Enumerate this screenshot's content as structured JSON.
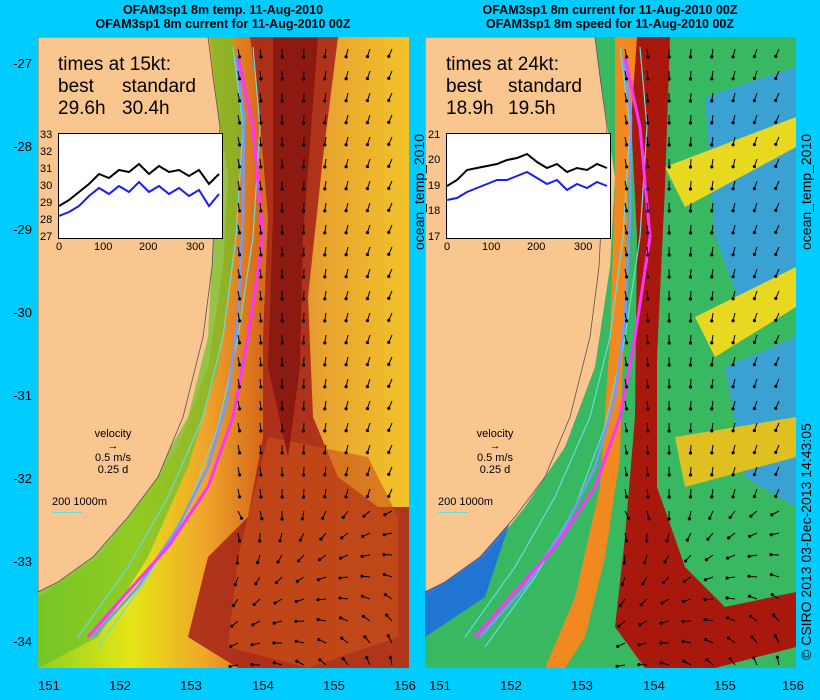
{
  "left": {
    "title_line1": "OFAM3sp1 8m temp. 11-Aug-2010",
    "title_line2": "OFAM3sp1 8m current for 11-Aug-2010 00Z",
    "times_heading": "times at 15kt:",
    "col1_label": "best",
    "col2_label": "standard",
    "best_value": "29.6h",
    "standard_value": "30.4h",
    "inset_y_ticks": [
      "33",
      "32",
      "31",
      "30",
      "29",
      "28",
      "27"
    ],
    "inset_x_ticks": [
      "0",
      "100",
      "200",
      "300"
    ],
    "side_label": "ocean_temp_2010"
  },
  "right": {
    "title_line1": "OFAM3sp1 8m current for 11-Aug-2010 00Z",
    "title_line2": "OFAM3sp1 8m speed for 11-Aug-2010 00Z",
    "times_heading": "times at 24kt:",
    "col1_label": "best",
    "col2_label": "standard",
    "best_value": "18.9h",
    "standard_value": "19.5h",
    "inset_y_ticks": [
      "21",
      "20",
      "19",
      "18",
      "17"
    ],
    "inset_x_ticks": [
      "0",
      "100",
      "200",
      "300"
    ],
    "side_label": "ocean_temp_2010"
  },
  "velocity_legend": {
    "label": "velocity",
    "speed": "0.5 m/s",
    "time": "0.25 d"
  },
  "depth_legend": {
    "label": "200  1000m"
  },
  "lat_ticks": [
    "-27",
    "-28",
    "-29",
    "-30",
    "-31",
    "-32",
    "-33",
    "-34"
  ],
  "lon_ticks": [
    "151",
    "152",
    "153",
    "154",
    "155",
    "156"
  ],
  "copyright": "© CSIRO 2013   03-Dec-2013 14:43:05",
  "colors": {
    "land": "#f9c690",
    "background": "#00ccff",
    "route_best": "#ff33ff",
    "route_standard": "#7799ff",
    "isobath": "#66dddd"
  }
}
